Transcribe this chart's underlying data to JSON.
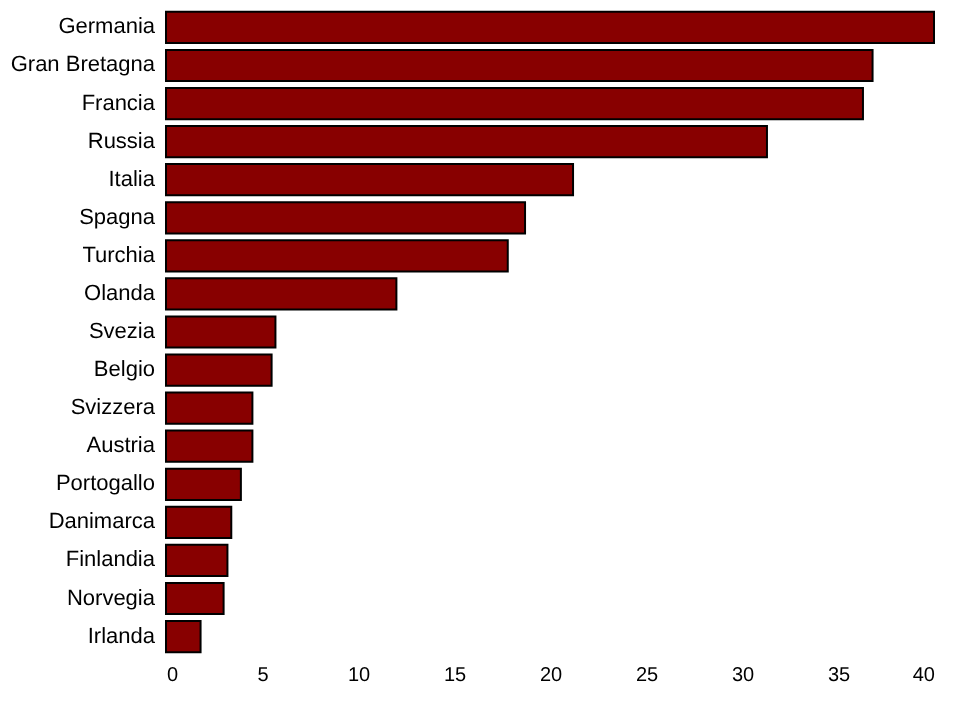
{
  "chart_data": {
    "type": "bar",
    "orientation": "horizontal",
    "categories": [
      "Germania",
      "Gran Bretagna",
      "Francia",
      "Russia",
      "Italia",
      "Spagna",
      "Turchia",
      "Olanda",
      "Svezia",
      "Belgio",
      "Svizzera",
      "Austria",
      "Portogallo",
      "Danimarca",
      "Finlandia",
      "Norvegia",
      "Irlanda"
    ],
    "values": [
      40.0,
      36.8,
      36.3,
      31.3,
      21.2,
      18.7,
      17.8,
      12.0,
      5.7,
      5.5,
      4.5,
      4.5,
      3.9,
      3.4,
      3.2,
      3.0,
      1.8
    ],
    "color": "#880000",
    "xlim": [
      0,
      40
    ],
    "xticks": [
      0,
      5,
      10,
      15,
      20,
      25,
      30,
      35,
      40
    ],
    "grid": false
  }
}
